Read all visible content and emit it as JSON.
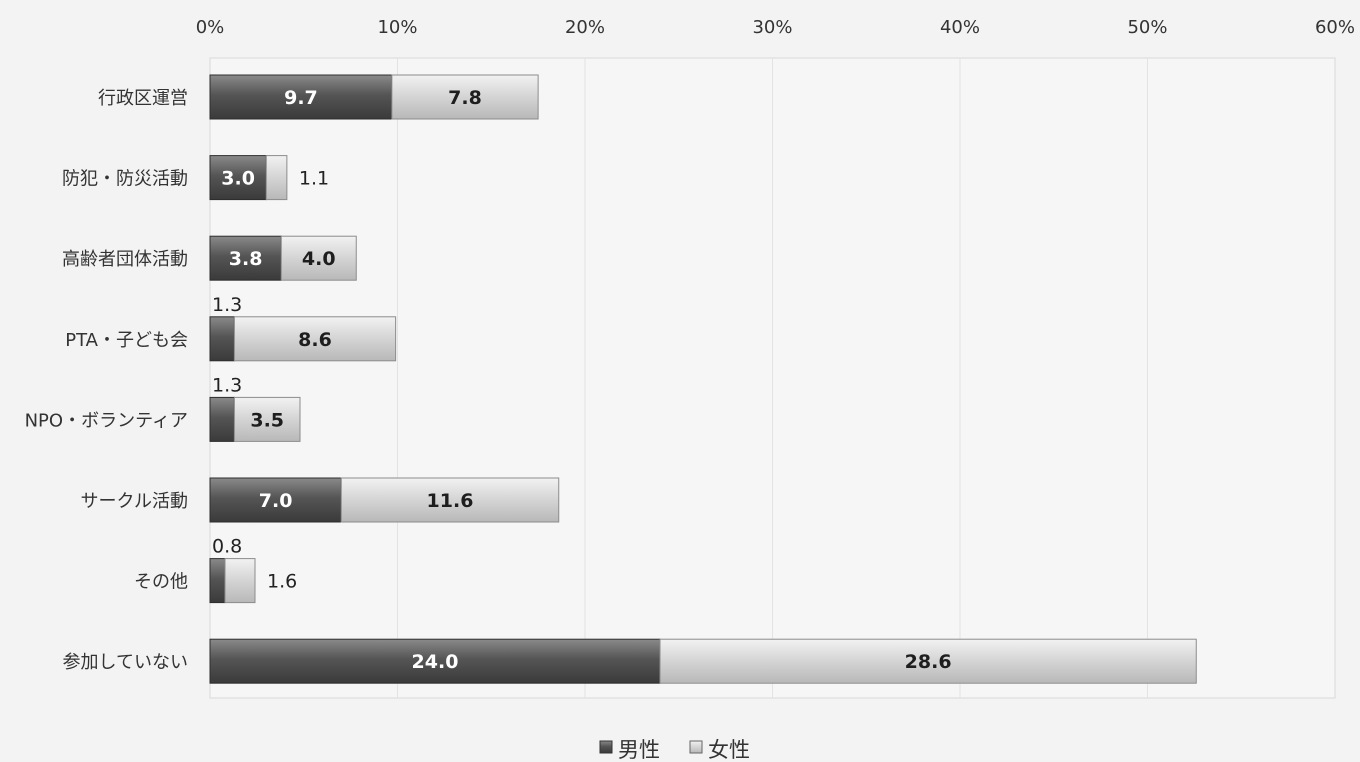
{
  "chart_data": {
    "type": "bar",
    "orientation": "horizontal",
    "stacked": true,
    "categories": [
      "行政区運営",
      "防犯・防災活動",
      "高齢者団体活動",
      "PTA・子ども会",
      "NPO・ボランティア",
      "サークル活動",
      "その他",
      "参加していない"
    ],
    "series": [
      {
        "name": "男性",
        "values": [
          9.7,
          3.0,
          3.8,
          1.3,
          1.3,
          7.0,
          0.8,
          24.0
        ],
        "labels": [
          "9.7",
          "3.0",
          "3.8",
          "1.3",
          "1.3",
          "7.0",
          "0.8",
          "24.0"
        ],
        "color": "#5a5a5a"
      },
      {
        "name": "女性",
        "values": [
          7.8,
          1.1,
          4.0,
          8.6,
          3.5,
          11.6,
          1.6,
          28.6
        ],
        "labels": [
          "7.8",
          "1.1",
          "4.0",
          "8.6",
          "3.5",
          "11.6",
          "1.6",
          "28.6"
        ],
        "color": "#d6d6d6"
      }
    ],
    "xlim": [
      0,
      60
    ],
    "xticks": [
      0,
      10,
      20,
      30,
      40,
      50,
      60
    ],
    "xtick_labels": [
      "0%",
      "10%",
      "20%",
      "30%",
      "40%",
      "50%",
      "60%"
    ],
    "axis_position": "top",
    "grid": true,
    "legend_position": "bottom"
  }
}
